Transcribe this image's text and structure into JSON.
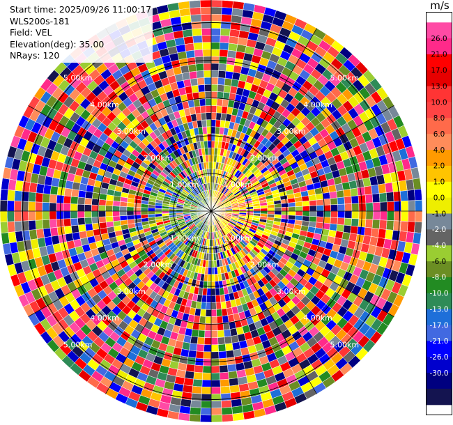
{
  "info": {
    "start_time": "Start time: 2025/09/26 11:00:17",
    "instrument": "WLS200s-181",
    "field": "Field: VEL",
    "elevation": "Elevation(deg): 35.00",
    "nrays": "NRays: 120"
  },
  "colorbar": {
    "unit": "m/s",
    "colors": [
      "#ff4aa5",
      "#ff2a8a",
      "#ff0000",
      "#e60000",
      "#ff3434",
      "#ff4444",
      "#ff6a4a",
      "#ff8c5a",
      "#ff9a00",
      "#ffc400",
      "#ffff00",
      "#eeee00",
      "#778899",
      "#646464",
      "#9acd32",
      "#6b8e23",
      "#228b22",
      "#2e8b57",
      "#1e6fd9",
      "#4169e1",
      "#0000ff",
      "#0000cd",
      "#000080",
      "#141450"
    ],
    "labels": [
      "26.0",
      "21.0",
      "17.0",
      "13.0",
      "10.0",
      "8.0",
      "6.0",
      "4.0",
      "2.0",
      "1.0",
      "0.0",
      "-1.0",
      "-2.0",
      "-4.0",
      "-6.0",
      "-8.0",
      "-10.0",
      "-13.0",
      "-17.0",
      "-21.0",
      "-26.0",
      "-30.0"
    ]
  },
  "chart_data": {
    "type": "heatmap",
    "plot": "polar PPI",
    "field": "VEL",
    "units": "m/s",
    "elevation_deg": 35.0,
    "n_rays": 120,
    "range_rings_km": [
      1,
      2,
      3,
      4,
      5
    ],
    "range_labels": [
      "1.00km",
      "2.00km",
      "3.00km",
      "4.00km",
      "5.00km"
    ],
    "radial_spokes_deg": [
      0,
      30,
      60,
      90,
      120,
      150,
      180,
      210,
      240,
      270,
      300,
      330
    ],
    "max_range_km": 5.6,
    "pattern": {
      "near_range_west": "-2 to -8 m/s (greens)",
      "near_range_east": "1 to 6 m/s (yellow to orange)",
      "far_range": "noisy, full colour scale -30 to 26 m/s"
    }
  }
}
